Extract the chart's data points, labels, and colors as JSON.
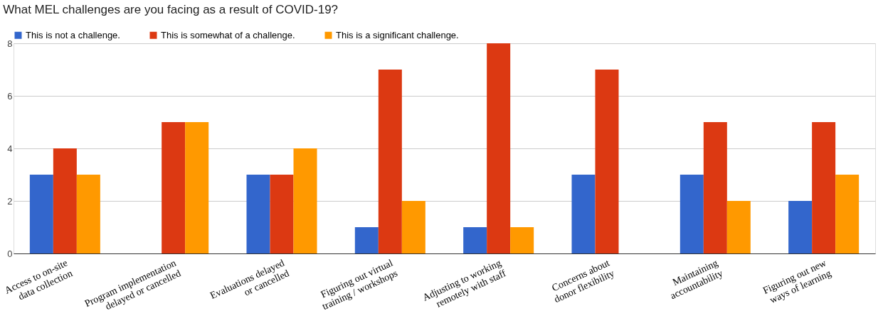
{
  "chart_data": {
    "type": "bar",
    "title": "What MEL challenges are you facing as a result of COVID-19?",
    "categories": [
      "Access to on-site data collection",
      "Program implementation delayed or cancelled",
      "Evaluations delayed or cancelled",
      "Figuring out virtual training / workshops",
      "Adjusting to working remotely with staff",
      "Concerns about donor flexibility",
      "Maintaining accountability",
      "Figuring out new ways of learning"
    ],
    "series": [
      {
        "name": "This is not a challenge.",
        "color": "#3366cc",
        "values": [
          3,
          0,
          3,
          1,
          1,
          3,
          3,
          2
        ]
      },
      {
        "name": "This is somewhat of a challenge.",
        "color": "#dc3912",
        "values": [
          4,
          5,
          3,
          7,
          8,
          7,
          5,
          5
        ]
      },
      {
        "name": "This is a significant challenge.",
        "color": "#ff9900",
        "values": [
          3,
          5,
          4,
          2,
          1,
          0,
          2,
          3
        ]
      }
    ],
    "ylim": [
      0,
      8
    ],
    "yticks": [
      0,
      2,
      4,
      6,
      8
    ],
    "grid": "y",
    "legend": "top"
  }
}
